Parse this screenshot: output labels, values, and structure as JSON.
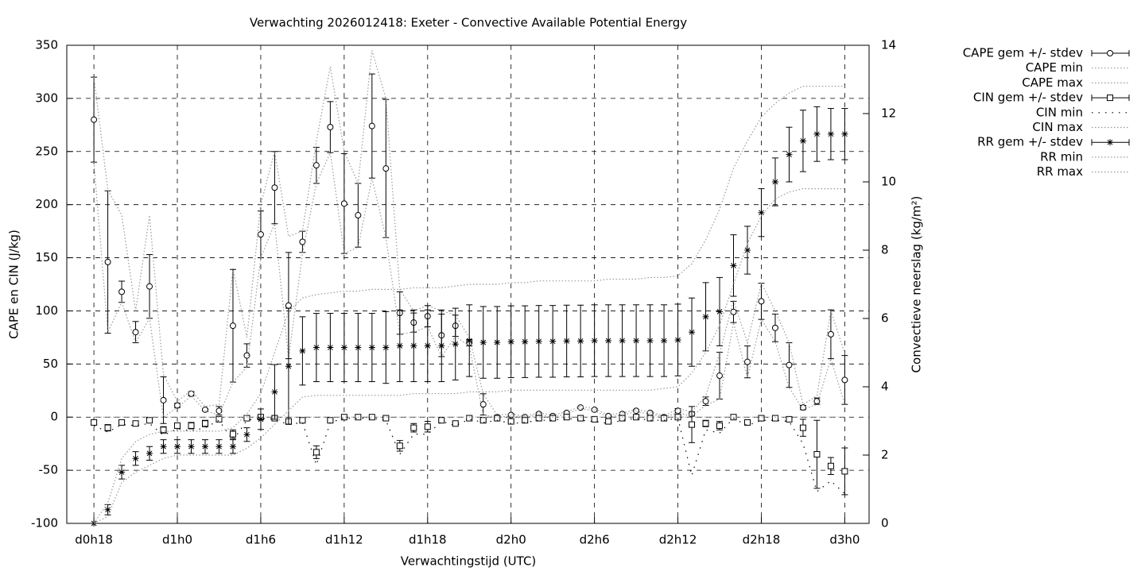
{
  "chart_data": {
    "type": "line",
    "title": "Verwachting 2026012418: Exeter - Convective Available Potential Energy",
    "x_label": "Verwachtingstijd (UTC)",
    "y_label": "CAPE en CIN (J/kg)",
    "y2_label": "Convectieve neerslag (kg/m²)",
    "x": [
      18,
      19,
      20,
      21,
      22,
      23,
      24,
      25,
      26,
      27,
      28,
      29,
      30,
      31,
      32,
      33,
      34,
      35,
      36,
      37,
      38,
      39,
      40,
      41,
      42,
      43,
      44,
      45,
      46,
      47,
      48,
      49,
      50,
      51,
      52,
      53,
      54,
      55,
      56,
      57,
      58,
      59,
      60,
      61,
      62,
      63,
      64,
      65,
      66,
      67,
      68,
      69,
      70,
      71,
      72
    ],
    "xlim": [
      16.05,
      73.75
    ],
    "xticks": [
      {
        "value": 18,
        "label": "d0h18"
      },
      {
        "value": 24,
        "label": "d1h0"
      },
      {
        "value": 30,
        "label": "d1h6"
      },
      {
        "value": 36,
        "label": "d1h12"
      },
      {
        "value": 42,
        "label": "d1h18"
      },
      {
        "value": 48,
        "label": "d2h0"
      },
      {
        "value": 54,
        "label": "d2h6"
      },
      {
        "value": 60,
        "label": "d2h12"
      },
      {
        "value": 66,
        "label": "d2h18"
      },
      {
        "value": 72,
        "label": "d3h0"
      }
    ],
    "ylim": [
      -100,
      350
    ],
    "yticks": [
      -100,
      -50,
      0,
      50,
      100,
      150,
      200,
      250,
      300,
      350
    ],
    "y2lim": [
      0,
      14
    ],
    "y2ticks": [
      0,
      2,
      4,
      6,
      8,
      10,
      12,
      14
    ],
    "grid": true,
    "legend": "right",
    "series": [
      {
        "name": "CAPE gem +/- stdev",
        "color": "#000000",
        "marker": "circle",
        "style": "errorbars",
        "values": [
          280,
          146,
          118,
          80,
          123,
          16,
          11,
          22,
          7,
          6,
          86,
          58,
          172,
          216,
          105,
          165,
          237,
          273,
          201,
          190,
          274,
          234,
          98,
          89,
          95,
          77,
          86,
          70,
          12,
          0,
          2,
          0,
          3,
          1,
          4,
          9,
          7,
          1,
          3,
          6,
          4,
          0,
          6,
          3,
          15,
          39,
          99,
          52,
          109,
          84,
          49,
          9,
          15,
          78,
          35
        ],
        "errors": [
          40,
          67,
          10,
          10,
          30,
          22,
          2,
          2,
          1,
          4,
          53,
          11,
          22,
          34,
          50,
          10,
          17,
          24,
          47,
          30,
          49,
          65,
          20,
          9,
          10,
          20,
          10,
          3,
          10,
          1,
          1,
          0,
          1,
          1,
          1,
          1,
          1,
          1,
          1,
          1,
          1,
          1,
          2,
          2,
          4,
          22,
          10,
          15,
          17,
          13,
          21,
          2,
          3,
          23,
          23
        ]
      },
      {
        "name": "CAPE min",
        "color": "#999999",
        "style": "dotted",
        "values": [
          240,
          80,
          108,
          70,
          93,
          0,
          9,
          20,
          6,
          2,
          33,
          47,
          150,
          182,
          55,
          154,
          220,
          249,
          154,
          160,
          225,
          169,
          78,
          80,
          85,
          57,
          76,
          67,
          2,
          0,
          1,
          0,
          2,
          0,
          3,
          8,
          6,
          0,
          2,
          5,
          3,
          0,
          4,
          1,
          11,
          17,
          89,
          37,
          92,
          71,
          28,
          7,
          12,
          55,
          12
        ]
      },
      {
        "name": "CAPE max",
        "color": "#999999",
        "style": "dotted",
        "values": [
          320,
          214,
          190,
          100,
          190,
          40,
          15,
          25,
          10,
          12,
          140,
          75,
          200,
          250,
          170,
          175,
          260,
          330,
          250,
          220,
          345,
          300,
          120,
          100,
          105,
          100,
          96,
          75,
          22,
          2,
          3,
          1,
          4,
          2,
          5,
          10,
          8,
          2,
          4,
          7,
          5,
          1,
          8,
          5,
          20,
          60,
          110,
          70,
          126,
          100,
          70,
          12,
          20,
          100,
          60
        ]
      },
      {
        "name": "CIN gem +/- stdev",
        "color": "#000000",
        "marker": "square",
        "style": "errorbars",
        "values": [
          -5,
          -10,
          -5,
          -6,
          -3,
          -12,
          -8,
          -8,
          -6,
          -2,
          -16,
          -1,
          0,
          -1,
          -4,
          -3,
          -33,
          -3,
          0,
          0,
          0,
          -1,
          -27,
          -10,
          -9,
          -3,
          -6,
          -1,
          -3,
          -1,
          -4,
          -3,
          -1,
          -1,
          0,
          -1,
          -2,
          -4,
          -1,
          0,
          -1,
          -1,
          0,
          -7,
          -6,
          -8,
          0,
          -5,
          -1,
          -1,
          -2,
          -10,
          -35,
          -46,
          -51
        ],
        "errors": [
          2,
          3,
          1,
          1,
          2,
          3,
          2,
          3,
          3,
          1,
          4,
          1,
          1,
          1,
          2,
          1,
          6,
          1,
          0,
          0,
          0,
          1,
          5,
          4,
          5,
          1,
          1,
          1,
          1,
          1,
          1,
          1,
          1,
          1,
          0,
          1,
          1,
          1,
          1,
          1,
          1,
          1,
          1,
          17,
          3,
          4,
          1,
          2,
          1,
          1,
          1,
          8,
          32,
          8,
          22
        ]
      },
      {
        "name": "CIN min",
        "color": "#000000",
        "style": "sparse",
        "values": [
          -8,
          -14,
          -7,
          -8,
          -6,
          -17,
          -11,
          -13,
          -10,
          -3,
          -22,
          -3,
          -1,
          -2,
          -7,
          -5,
          -45,
          -5,
          -1,
          -1,
          -1,
          -3,
          -35,
          -16,
          -16,
          -4,
          -8,
          -2,
          -5,
          -3,
          -6,
          -5,
          -3,
          -3,
          -1,
          -3,
          -4,
          -6,
          -3,
          -1,
          -3,
          -3,
          -1,
          -55,
          -12,
          -15,
          -1,
          -8,
          -3,
          -3,
          -4,
          -25,
          -70,
          -60,
          -72
        ]
      },
      {
        "name": "CIN max",
        "color": "#999999",
        "style": "dotted",
        "values": [
          0,
          0,
          0,
          0,
          0,
          0,
          0,
          0,
          0,
          0,
          0,
          0,
          0,
          0,
          0,
          0,
          0,
          0,
          0,
          0,
          0,
          0,
          0,
          0,
          0,
          0,
          0,
          0,
          0,
          0,
          0,
          0,
          0,
          0,
          0,
          0,
          0,
          0,
          0,
          0,
          0,
          0,
          0,
          0,
          0,
          0,
          0,
          0,
          0,
          0,
          0,
          0,
          0,
          0,
          0
        ]
      },
      {
        "name": "RR gem +/- stdev",
        "color": "#000000",
        "marker": "star",
        "style": "errorbars",
        "axis": "y2",
        "values": [
          0,
          0.4,
          1.5,
          1.9,
          2.05,
          2.25,
          2.25,
          2.25,
          2.25,
          2.25,
          2.25,
          2.6,
          3.05,
          3.85,
          4.6,
          5.05,
          5.15,
          5.15,
          5.15,
          5.15,
          5.15,
          5.15,
          5.2,
          5.2,
          5.2,
          5.2,
          5.25,
          5.35,
          5.3,
          5.3,
          5.32,
          5.32,
          5.33,
          5.33,
          5.34,
          5.34,
          5.35,
          5.35,
          5.35,
          5.35,
          5.35,
          5.35,
          5.37,
          5.6,
          6.05,
          6.2,
          7.55,
          8.0,
          9.1,
          10.0,
          10.8,
          11.2,
          11.4,
          11.4,
          11.4
        ],
        "errors": [
          0,
          0.15,
          0.2,
          0.2,
          0.2,
          0.2,
          0.2,
          0.2,
          0.2,
          0.2,
          0.2,
          0.2,
          0.3,
          0.8,
          1.7,
          1.0,
          1.0,
          1.0,
          1.0,
          1.0,
          1.0,
          1.05,
          1.05,
          1.05,
          1.05,
          1.05,
          1.05,
          1.05,
          1.05,
          1.05,
          1.05,
          1.05,
          1.05,
          1.05,
          1.05,
          1.05,
          1.05,
          1.05,
          1.05,
          1.05,
          1.05,
          1.05,
          1.05,
          1.0,
          1.0,
          1.0,
          0.9,
          0.7,
          0.7,
          0.7,
          0.8,
          0.9,
          0.8,
          0.75,
          0.75
        ]
      },
      {
        "name": "RR min",
        "color": "#999999",
        "style": "dotted",
        "axis": "y2",
        "values": [
          0,
          0.2,
          1.2,
          1.5,
          1.7,
          1.9,
          2.0,
          2.0,
          2.0,
          2.0,
          2.0,
          2.2,
          2.5,
          2.9,
          3.3,
          3.7,
          3.75,
          3.75,
          3.75,
          3.75,
          3.75,
          3.75,
          3.75,
          3.8,
          3.8,
          3.8,
          3.8,
          3.85,
          3.85,
          3.85,
          3.9,
          3.9,
          3.9,
          3.9,
          3.9,
          3.9,
          3.9,
          3.9,
          3.9,
          3.9,
          3.9,
          3.95,
          4.0,
          4.4,
          5.0,
          5.8,
          7.0,
          8.2,
          9.0,
          9.5,
          9.7,
          9.8,
          9.8,
          9.8,
          9.8
        ]
      },
      {
        "name": "RR max",
        "color": "#999999",
        "style": "dotted",
        "axis": "y2",
        "values": [
          0,
          0.6,
          1.9,
          2.4,
          2.6,
          2.7,
          2.7,
          2.7,
          2.7,
          2.7,
          2.8,
          3.2,
          3.8,
          5.0,
          6.2,
          6.6,
          6.7,
          6.75,
          6.8,
          6.8,
          6.85,
          6.85,
          6.85,
          6.9,
          6.9,
          6.9,
          6.95,
          7.0,
          7.0,
          7.0,
          7.05,
          7.05,
          7.1,
          7.1,
          7.1,
          7.1,
          7.1,
          7.15,
          7.15,
          7.15,
          7.2,
          7.2,
          7.25,
          7.6,
          8.3,
          9.2,
          10.4,
          11.2,
          11.9,
          12.3,
          12.6,
          12.8,
          12.8,
          12.8,
          12.8
        ]
      }
    ]
  }
}
